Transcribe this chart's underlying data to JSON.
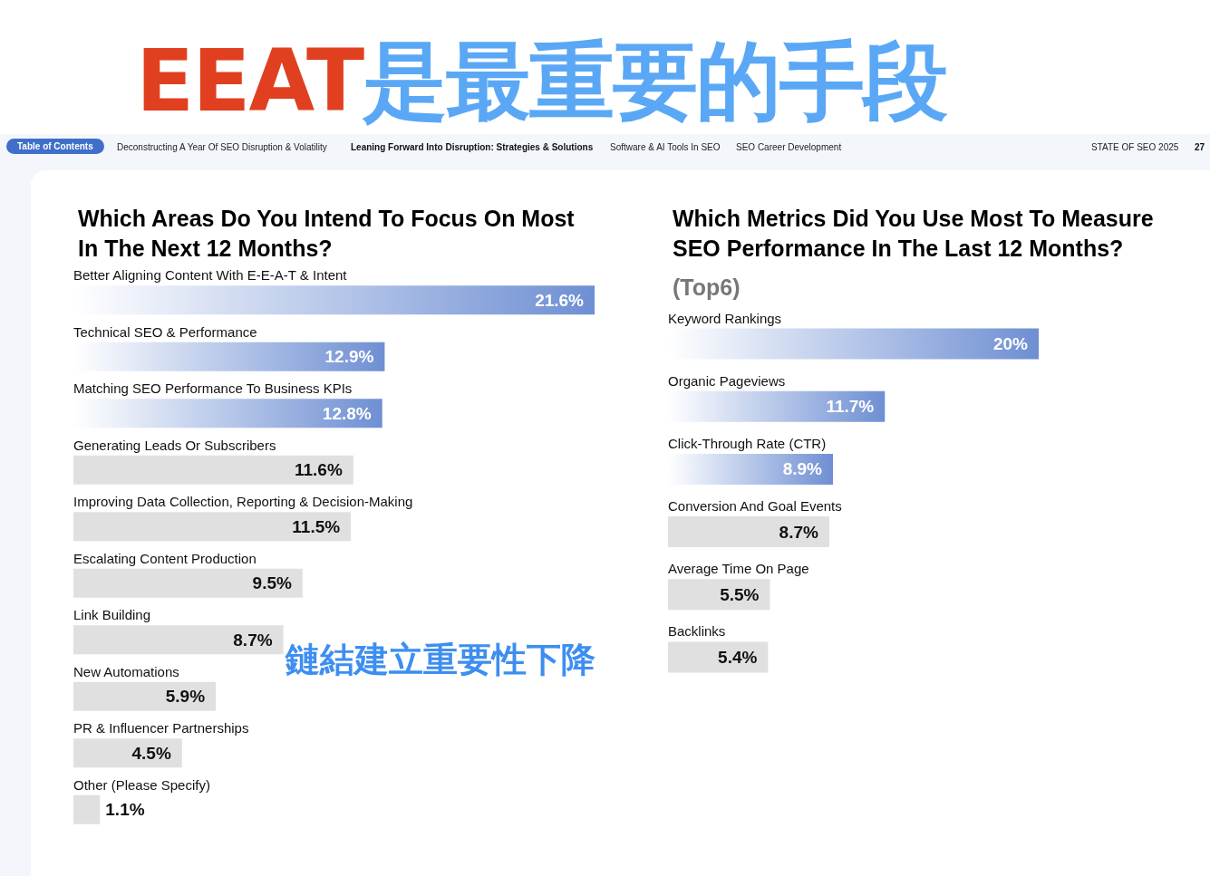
{
  "chart_data": [
    {
      "type": "bar",
      "orientation": "horizontal",
      "title": "Which Areas Do You Intend To Focus On Most\nIn The Next 12 Months?",
      "categories": [
        "Better Aligning Content With E-E-A-T & Intent",
        "Technical SEO & Performance",
        "Matching SEO Performance To Business KPIs",
        "Generating Leads Or Subscribers",
        "Improving Data Collection, Reporting & Decision-Making",
        "Escalating Content Production",
        "Link Building",
        "New Automations",
        "PR & Influencer Partnerships",
        "Other (Please Specify)"
      ],
      "values": [
        21.6,
        12.9,
        12.8,
        11.6,
        11.5,
        9.5,
        8.7,
        5.9,
        4.5,
        1.1
      ],
      "value_labels": [
        "21.6%",
        "12.9%",
        "12.8%",
        "11.6%",
        "11.5%",
        "9.5%",
        "8.7%",
        "5.9%",
        "4.5%",
        "1.1%"
      ],
      "colors": [
        "#6e8fd3",
        "#6e8fd3",
        "#6e8fd3",
        "#e0e0e0",
        "#e0e0e0",
        "#e0e0e0",
        "#e0e0e0",
        "#e0e0e0",
        "#e0e0e0",
        "#e0e0e0"
      ],
      "xlim": [
        0,
        21.6
      ],
      "tick_labels": "y",
      "annotations": [
        "EEAT是最重要的手段",
        "Table of Contents",
        "Deconstructing A Year Of SEO Disruption & Volatility",
        "Leaning Forward Into Disruption: Strategies & Solutions",
        "Software & AI Tools In SEO",
        "SEO Career Development",
        "STATE OF SEO 2025",
        "27",
        "鏈結建立重要性下降"
      ]
    },
    {
      "type": "bar",
      "orientation": "horizontal",
      "title": "Which Metrics Did You Use Most To Measure\nSEO Performance In The Last 12 Months?",
      "subtitle": "(Top6)",
      "categories": [
        "Keyword Rankings",
        "Organic Pageviews",
        "Click-Through Rate (CTR)",
        "Conversion And Goal Events",
        "Average Time On Page",
        "Backlinks"
      ],
      "values": [
        20,
        11.7,
        8.9,
        8.7,
        5.5,
        5.4
      ],
      "value_labels": [
        "20%",
        "11.7%",
        "8.9%",
        "8.7%",
        "5.5%",
        "5.4%"
      ],
      "colors": [
        "#6e8fd3",
        "#6e8fd3",
        "#6e8fd3",
        "#e0e0e0",
        "#e0e0e0",
        "#e0e0e0"
      ],
      "xlim": [
        0,
        20
      ],
      "tick_labels": "y"
    }
  ]
}
